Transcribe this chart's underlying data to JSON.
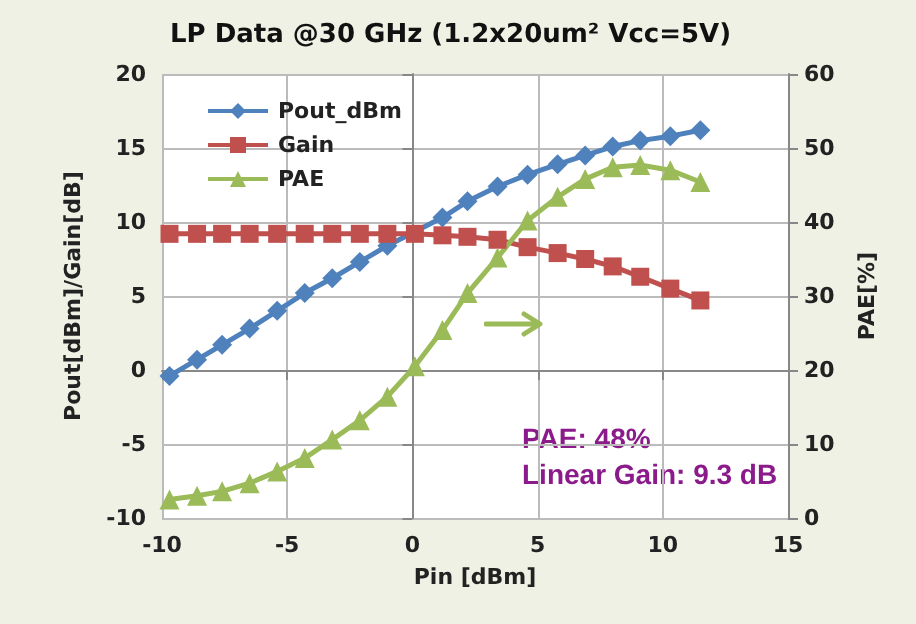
{
  "chart_data": {
    "type": "line",
    "title": "LP Data @30 GHz (1.2x20um² Vcc=5V)",
    "xlabel": "Pin [dBm]",
    "ylabel": "Pout[dBm]/Gain[dB]",
    "y2label": "PAE[%]",
    "x": [
      -9.7,
      -8.6,
      -7.6,
      -6.5,
      -5.4,
      -4.3,
      -3.2,
      -2.1,
      -1.0,
      0.1,
      1.2,
      2.2,
      3.4,
      4.6,
      5.8,
      6.9,
      8.0,
      9.1,
      10.3,
      11.5
    ],
    "series": [
      {
        "name": "Pout_dBm",
        "color": "#4f81bd",
        "marker": "diamond",
        "values": [
          -0.4,
          0.7,
          1.7,
          2.8,
          4.0,
          5.2,
          6.2,
          7.3,
          8.4,
          null,
          10.3,
          11.4,
          12.4,
          13.2,
          13.9,
          14.5,
          15.1,
          15.5,
          15.8,
          16.2
        ]
      },
      {
        "name": "Gain",
        "color": "#c0504d",
        "marker": "square",
        "values": [
          9.2,
          9.2,
          9.2,
          9.2,
          9.2,
          9.2,
          9.2,
          9.2,
          9.2,
          9.2,
          9.1,
          9.0,
          8.8,
          8.3,
          7.9,
          7.5,
          7.0,
          6.3,
          5.5,
          4.7
        ]
      },
      {
        "name": "PAE",
        "color": "#9bbb59",
        "marker": "triangle",
        "axis": "y2",
        "values": [
          2.5,
          3.0,
          3.6,
          4.7,
          6.3,
          8.1,
          10.6,
          13.2,
          16.4,
          20.5,
          25.4,
          30.4,
          35.2,
          40.2,
          43.4,
          45.8,
          47.4,
          47.7,
          47.0,
          45.4
        ]
      }
    ],
    "xlim": [
      -10,
      15
    ],
    "xticks": [
      -10,
      -5,
      0,
      5,
      10,
      15
    ],
    "ylim": [
      -10,
      20
    ],
    "yticks": [
      -10,
      -5,
      0,
      5,
      10,
      15,
      20
    ],
    "y2lim": [
      0,
      60
    ],
    "y2ticks": [
      0,
      10,
      20,
      30,
      40,
      50,
      60
    ],
    "annotations": [
      "PAE: 48%",
      "Linear Gain: 9.3 dB"
    ],
    "grid": true,
    "legend": "top left"
  }
}
